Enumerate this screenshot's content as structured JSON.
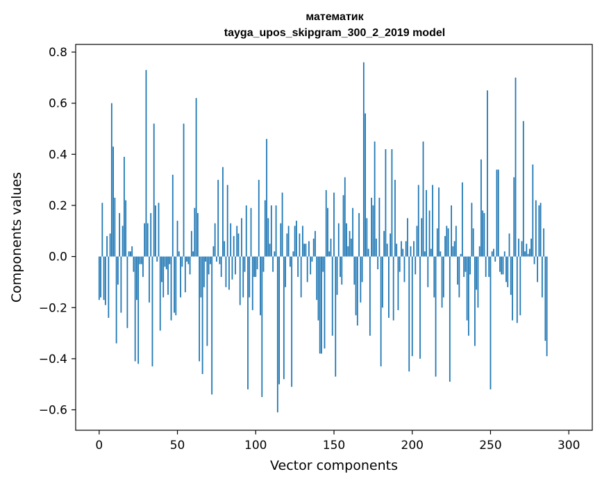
{
  "chart_data": {
    "type": "bar",
    "title_line1": "математик",
    "title_line2": "tayga_upos_skipgram_300_2_2019 model",
    "xlabel": "Vector components",
    "ylabel": "Components values",
    "xlim": [
      -15,
      315
    ],
    "ylim": [
      -0.68,
      0.83
    ],
    "xticks": [
      0,
      50,
      100,
      150,
      200,
      250,
      300
    ],
    "xtick_labels": [
      "0",
      "50",
      "100",
      "150",
      "200",
      "250",
      "300"
    ],
    "yticks": [
      -0.6,
      -0.4,
      -0.2,
      0.0,
      0.2,
      0.4,
      0.6,
      0.8
    ],
    "ytick_labels": [
      "−0.6",
      "−0.4",
      "−0.2",
      "0.0",
      "0.2",
      "0.4",
      "0.6",
      "0.8"
    ],
    "bar_color": "#1f77b4",
    "values": [
      -0.17,
      -0.16,
      0.21,
      -0.17,
      -0.19,
      0.08,
      -0.24,
      0.09,
      0.6,
      0.43,
      0.23,
      -0.34,
      -0.11,
      0.17,
      -0.22,
      0.12,
      0.39,
      0.22,
      -0.28,
      0.02,
      0.02,
      0.04,
      -0.06,
      -0.41,
      -0.17,
      -0.42,
      -0.03,
      -0.03,
      -0.08,
      0.13,
      0.73,
      0.13,
      -0.18,
      0.17,
      -0.43,
      0.52,
      0.2,
      -0.02,
      0.21,
      -0.29,
      -0.1,
      -0.16,
      -0.04,
      -0.05,
      -0.15,
      -0.03,
      -0.25,
      0.32,
      -0.22,
      -0.23,
      0.14,
      0.02,
      -0.16,
      -0.04,
      0.52,
      -0.14,
      -0.02,
      -0.03,
      -0.07,
      0.1,
      0.02,
      0.19,
      0.62,
      0.17,
      -0.41,
      -0.16,
      -0.46,
      -0.12,
      -0.02,
      -0.35,
      -0.07,
      -0.03,
      -0.54,
      0.04,
      0.13,
      -0.02,
      0.3,
      -0.03,
      -0.08,
      0.35,
      0.06,
      -0.12,
      0.28,
      -0.13,
      0.13,
      -0.09,
      0.08,
      -0.07,
      0.12,
      0.09,
      -0.19,
      0.15,
      -0.16,
      -0.06,
      0.2,
      -0.52,
      -0.16,
      0.19,
      -0.21,
      -0.08,
      -0.08,
      -0.05,
      0.3,
      -0.23,
      -0.55,
      -0.06,
      0.22,
      0.46,
      0.15,
      0.05,
      0.2,
      -0.06,
      0.02,
      0.2,
      -0.61,
      -0.5,
      0.13,
      0.25,
      -0.48,
      -0.12,
      0.09,
      0.12,
      -0.04,
      -0.51,
      0.02,
      0.12,
      0.14,
      -0.08,
      0.09,
      -0.16,
      0.12,
      0.05,
      0.05,
      -0.1,
      0.06,
      -0.07,
      -0.02,
      0.07,
      0.1,
      -0.17,
      -0.25,
      -0.38,
      -0.38,
      -0.06,
      -0.36,
      0.26,
      0.19,
      0.02,
      0.07,
      -0.31,
      0.25,
      -0.47,
      -0.15,
      0.13,
      -0.08,
      -0.11,
      0.24,
      0.31,
      0.13,
      0.04,
      0.1,
      0.07,
      0.19,
      -0.11,
      -0.23,
      -0.27,
      0.17,
      -0.18,
      -0.1,
      0.76,
      0.56,
      0.15,
      0.03,
      -0.31,
      0.23,
      0.2,
      0.45,
      0.07,
      -0.05,
      0.23,
      -0.43,
      -0.2,
      0.1,
      0.42,
      0.05,
      -0.24,
      0.09,
      0.42,
      -0.25,
      0.3,
      0.05,
      -0.21,
      -0.06,
      0.06,
      0.03,
      -0.1,
      0.06,
      0.15,
      -0.45,
      0.04,
      -0.39,
      0.06,
      -0.07,
      0.12,
      0.28,
      -0.4,
      0.15,
      0.45,
      0.02,
      0.26,
      -0.12,
      0.18,
      0.03,
      0.28,
      -0.16,
      -0.47,
      0.11,
      0.27,
      0.02,
      -0.2,
      -0.16,
      0.08,
      0.12,
      0.11,
      -0.49,
      0.2,
      0.04,
      0.06,
      0.12,
      -0.11,
      -0.16,
      0.01,
      0.29,
      -0.08,
      -0.06,
      -0.25,
      -0.31,
      -0.07,
      0.21,
      0.11,
      -0.35,
      -0.13,
      -0.2,
      0.04,
      0.38,
      0.18,
      0.17,
      -0.08,
      0.65,
      -0.08,
      -0.52,
      0.02,
      0.03,
      -0.02,
      0.34,
      0.34,
      -0.06,
      -0.07,
      -0.07,
      0.02,
      -0.1,
      -0.12,
      0.09,
      -0.15,
      -0.25,
      0.31,
      0.7,
      -0.26,
      0.07,
      -0.23,
      0.06,
      0.53,
      0.02,
      0.05,
      0.01,
      0.03,
      0.07,
      0.36,
      -0.03,
      0.22,
      -0.1,
      0.2,
      0.21,
      -0.16,
      0.11,
      -0.33,
      -0.39
    ]
  }
}
